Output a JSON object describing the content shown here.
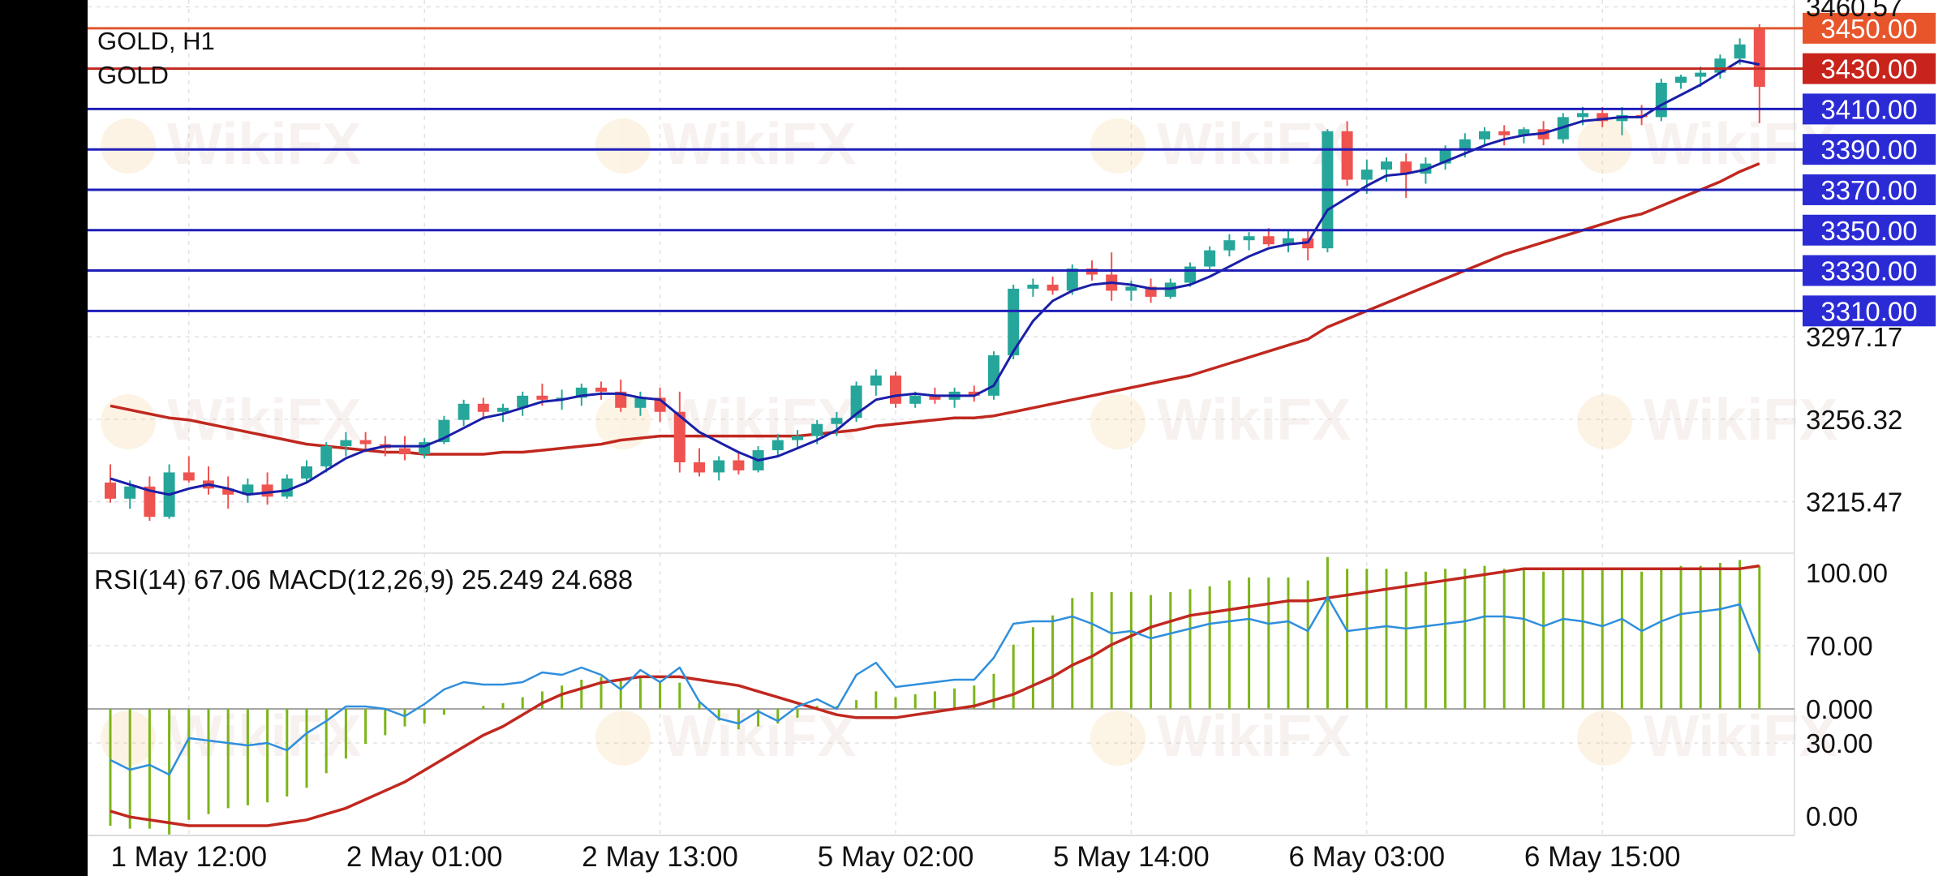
{
  "chart_data": {
    "type": "candlestick",
    "symbol_label": "GOLD, H1",
    "symbol_sub": "GOLD",
    "watermark_text": "WikiFX",
    "colors": {
      "background": "#ffffff",
      "bull": "#26a69a",
      "bear": "#ef5350",
      "ma_fast": "#1a1fa8",
      "ma_slow": "#c0281f",
      "level_line_blue": "#1f1fb8",
      "level_line_red": "#c0281f",
      "level_line_orange": "#e0572f",
      "price_tag_blue": "#2b2bd6",
      "price_tag_red": "#c8241c",
      "price_tag_orange": "#e8552a",
      "rsi_line": "#2f8fdc",
      "macd_signal": "#c0281f",
      "macd_hist": "#7cb518"
    },
    "price_axis": {
      "range": [
        3190,
        3464
      ],
      "tick_labels": [
        "3460.57",
        "3297.17",
        "3256.32",
        "3215.47"
      ],
      "tick_values": [
        3460.57,
        3297.17,
        3256.32,
        3215.47
      ]
    },
    "level_lines": [
      {
        "value": 3450,
        "label": "3450.00",
        "tag": "orange"
      },
      {
        "value": 3430,
        "label": "3430.00",
        "tag": "red"
      },
      {
        "value": 3410,
        "label": "3410.00",
        "tag": "blue"
      },
      {
        "value": 3390,
        "label": "3390.00",
        "tag": "blue"
      },
      {
        "value": 3370,
        "label": "3370.00",
        "tag": "blue"
      },
      {
        "value": 3350,
        "label": "3350.00",
        "tag": "blue"
      },
      {
        "value": 3330,
        "label": "3330.00",
        "tag": "blue"
      },
      {
        "value": 3310,
        "label": "3310.00",
        "tag": "blue"
      }
    ],
    "time_axis": {
      "labels": [
        "1 May 12:00",
        "2 May 01:00",
        "2 May 13:00",
        "5 May 02:00",
        "5 May 14:00",
        "6 May 03:00",
        "6 May 15:00"
      ],
      "label_bar_index": [
        4,
        16,
        28,
        40,
        52,
        64,
        76
      ]
    },
    "candles": [
      [
        3225,
        3234,
        3215,
        3217
      ],
      [
        3217,
        3226,
        3212,
        3223
      ],
      [
        3223,
        3228,
        3206,
        3208
      ],
      [
        3208,
        3234,
        3207,
        3230
      ],
      [
        3230,
        3238,
        3225,
        3226
      ],
      [
        3226,
        3233,
        3219,
        3222
      ],
      [
        3222,
        3228,
        3212,
        3219
      ],
      [
        3219,
        3227,
        3215,
        3224
      ],
      [
        3224,
        3230,
        3214,
        3218
      ],
      [
        3218,
        3229,
        3217,
        3227
      ],
      [
        3227,
        3236,
        3225,
        3233
      ],
      [
        3233,
        3245,
        3230,
        3243
      ],
      [
        3243,
        3250,
        3238,
        3246
      ],
      [
        3246,
        3250,
        3240,
        3244
      ],
      [
        3244,
        3248,
        3238,
        3242
      ],
      [
        3242,
        3248,
        3236,
        3239
      ],
      [
        3239,
        3247,
        3237,
        3245
      ],
      [
        3245,
        3258,
        3244,
        3256
      ],
      [
        3256,
        3266,
        3253,
        3264
      ],
      [
        3264,
        3267,
        3256,
        3260
      ],
      [
        3260,
        3264,
        3255,
        3262
      ],
      [
        3262,
        3270,
        3258,
        3268
      ],
      [
        3268,
        3274,
        3263,
        3266
      ],
      [
        3266,
        3271,
        3261,
        3267
      ],
      [
        3267,
        3274,
        3263,
        3272
      ],
      [
        3272,
        3275,
        3266,
        3270
      ],
      [
        3270,
        3276,
        3260,
        3262
      ],
      [
        3262,
        3270,
        3258,
        3267
      ],
      [
        3267,
        3272,
        3255,
        3260
      ],
      [
        3260,
        3270,
        3230,
        3235
      ],
      [
        3235,
        3242,
        3228,
        3230
      ],
      [
        3230,
        3238,
        3226,
        3236
      ],
      [
        3236,
        3240,
        3229,
        3231
      ],
      [
        3231,
        3243,
        3230,
        3241
      ],
      [
        3241,
        3249,
        3238,
        3246
      ],
      [
        3246,
        3251,
        3242,
        3248
      ],
      [
        3248,
        3256,
        3244,
        3254
      ],
      [
        3254,
        3260,
        3248,
        3257
      ],
      [
        3257,
        3275,
        3255,
        3273
      ],
      [
        3273,
        3281,
        3268,
        3278
      ],
      [
        3278,
        3280,
        3262,
        3264
      ],
      [
        3264,
        3270,
        3262,
        3268
      ],
      [
        3268,
        3272,
        3264,
        3266
      ],
      [
        3266,
        3272,
        3262,
        3270
      ],
      [
        3270,
        3273,
        3265,
        3268
      ],
      [
        3268,
        3290,
        3266,
        3288
      ],
      [
        3288,
        3323,
        3286,
        3321
      ],
      [
        3321,
        3326,
        3317,
        3323
      ],
      [
        3323,
        3327,
        3318,
        3320
      ],
      [
        3320,
        3333,
        3318,
        3331
      ],
      [
        3331,
        3335,
        3325,
        3328
      ],
      [
        3328,
        3339,
        3315,
        3320
      ],
      [
        3320,
        3325,
        3315,
        3322
      ],
      [
        3322,
        3326,
        3314,
        3317
      ],
      [
        3317,
        3326,
        3316,
        3324
      ],
      [
        3324,
        3334,
        3322,
        3332
      ],
      [
        3332,
        3342,
        3330,
        3340
      ],
      [
        3340,
        3348,
        3337,
        3345
      ],
      [
        3345,
        3349,
        3340,
        3347
      ],
      [
        3347,
        3351,
        3342,
        3343
      ],
      [
        3343,
        3350,
        3339,
        3346
      ],
      [
        3346,
        3350,
        3335,
        3341
      ],
      [
        3341,
        3400,
        3339,
        3399
      ],
      [
        3399,
        3404,
        3372,
        3375
      ],
      [
        3375,
        3385,
        3368,
        3380
      ],
      [
        3380,
        3386,
        3374,
        3384
      ],
      [
        3384,
        3388,
        3366,
        3378
      ],
      [
        3378,
        3386,
        3373,
        3383
      ],
      [
        3383,
        3392,
        3380,
        3390
      ],
      [
        3390,
        3398,
        3386,
        3395
      ],
      [
        3395,
        3401,
        3392,
        3399
      ],
      [
        3399,
        3402,
        3392,
        3397
      ],
      [
        3397,
        3401,
        3393,
        3400
      ],
      [
        3400,
        3404,
        3392,
        3395
      ],
      [
        3395,
        3408,
        3393,
        3406
      ],
      [
        3406,
        3411,
        3402,
        3408
      ],
      [
        3408,
        3411,
        3401,
        3404
      ],
      [
        3404,
        3411,
        3397,
        3407
      ],
      [
        3407,
        3412,
        3402,
        3406
      ],
      [
        3406,
        3425,
        3404,
        3423
      ],
      [
        3423,
        3427,
        3420,
        3426
      ],
      [
        3426,
        3431,
        3421,
        3428
      ],
      [
        3428,
        3437,
        3425,
        3435
      ],
      [
        3435,
        3445,
        3432,
        3442
      ],
      [
        3450,
        3452,
        3403,
        3421
      ]
    ],
    "ma_fast": [
      3227,
      3224,
      3221,
      3219,
      3222,
      3224,
      3222,
      3219,
      3220,
      3221,
      3225,
      3231,
      3237,
      3241,
      3243,
      3243,
      3243,
      3247,
      3252,
      3257,
      3259,
      3262,
      3265,
      3266,
      3268,
      3269,
      3269,
      3267,
      3266,
      3258,
      3250,
      3245,
      3240,
      3236,
      3238,
      3242,
      3246,
      3251,
      3259,
      3266,
      3268,
      3269,
      3268,
      3268,
      3268,
      3273,
      3290,
      3305,
      3315,
      3320,
      3323,
      3324,
      3323,
      3321,
      3321,
      3323,
      3327,
      3332,
      3337,
      3341,
      3343,
      3344,
      3360,
      3366,
      3372,
      3377,
      3378,
      3380,
      3384,
      3388,
      3392,
      3395,
      3397,
      3398,
      3401,
      3404,
      3405,
      3406,
      3406,
      3412,
      3417,
      3422,
      3428,
      3434,
      3432
    ],
    "ma_slow": [
      3263,
      3261,
      3259,
      3257,
      3256,
      3254,
      3252,
      3250,
      3248,
      3246,
      3244,
      3243,
      3242,
      3241,
      3240,
      3240,
      3239,
      3239,
      3239,
      3239,
      3240,
      3240,
      3241,
      3242,
      3243,
      3244,
      3246,
      3247,
      3248,
      3248,
      3248,
      3248,
      3248,
      3248,
      3248,
      3248,
      3249,
      3250,
      3251,
      3253,
      3254,
      3255,
      3256,
      3257,
      3257,
      3258,
      3260,
      3262,
      3264,
      3266,
      3268,
      3270,
      3272,
      3274,
      3276,
      3278,
      3281,
      3284,
      3287,
      3290,
      3293,
      3296,
      3302,
      3306,
      3310,
      3314,
      3318,
      3322,
      3326,
      3330,
      3334,
      3338,
      3341,
      3344,
      3347,
      3350,
      3353,
      3356,
      3358,
      3362,
      3366,
      3370,
      3374,
      3379,
      3383
    ]
  },
  "indicator": {
    "label": "RSI(14) 67.06 MACD(12,26,9) 25.249 24.688",
    "axis_labels": [
      "100.00",
      "70.00",
      "0.000",
      "30.00",
      "0.00"
    ],
    "rsi": [
      23,
      19,
      21,
      17,
      32,
      31,
      30,
      29,
      30,
      27,
      34,
      39,
      45,
      45,
      44,
      41,
      46,
      52,
      55,
      54,
      54,
      55,
      59,
      58,
      61,
      58,
      52,
      60,
      55,
      61,
      47,
      40,
      38,
      43,
      39,
      45,
      48,
      44,
      58,
      63,
      53,
      54,
      55,
      56,
      56,
      65,
      79,
      80,
      80,
      82,
      79,
      75,
      76,
      73,
      75,
      77,
      79,
      80,
      81,
      79,
      80,
      76,
      90,
      76,
      77,
      78,
      77,
      78,
      79,
      80,
      82,
      82,
      81,
      78,
      81,
      80,
      78,
      81,
      76,
      80,
      83,
      84,
      85,
      87,
      67
    ],
    "macd_signal": [
      -35,
      -37,
      -38,
      -39,
      -40,
      -40,
      -40,
      -40,
      -40,
      -39,
      -38,
      -36,
      -34,
      -31,
      -28,
      -25,
      -21,
      -17,
      -13,
      -9,
      -6,
      -2,
      2,
      5,
      7,
      9,
      10,
      11,
      11,
      11,
      10,
      9,
      8,
      6,
      4,
      2,
      0,
      -2,
      -3,
      -3,
      -3,
      -2,
      -1,
      0,
      1,
      3,
      5,
      8,
      11,
      15,
      18,
      22,
      25,
      28,
      30,
      32,
      33,
      34,
      35,
      36,
      37,
      37,
      38,
      39,
      40,
      41,
      42,
      43,
      44,
      45,
      46,
      47,
      48,
      48,
      48,
      48,
      48,
      48,
      48,
      48,
      48,
      48,
      48,
      48,
      49
    ],
    "macd_hist": [
      -40,
      -41,
      -41,
      -43,
      -38,
      -36,
      -34,
      -33,
      -32,
      -30,
      -27,
      -22,
      -17,
      -12,
      -9,
      -6,
      -5,
      -2,
      0,
      1,
      2,
      4,
      6,
      8,
      10,
      11,
      10,
      11,
      9,
      9,
      2,
      -4,
      -7,
      -6,
      -5,
      -3,
      1,
      1,
      3,
      6,
      4,
      5,
      6,
      7,
      8,
      12,
      22,
      28,
      32,
      38,
      40,
      40,
      40,
      39,
      40,
      41,
      42,
      44,
      45,
      45,
      45,
      44,
      52,
      48,
      48,
      48,
      47,
      47,
      48,
      48,
      49,
      48,
      48,
      47,
      48,
      48,
      48,
      48,
      47,
      48,
      49,
      49,
      50,
      51,
      49
    ]
  }
}
